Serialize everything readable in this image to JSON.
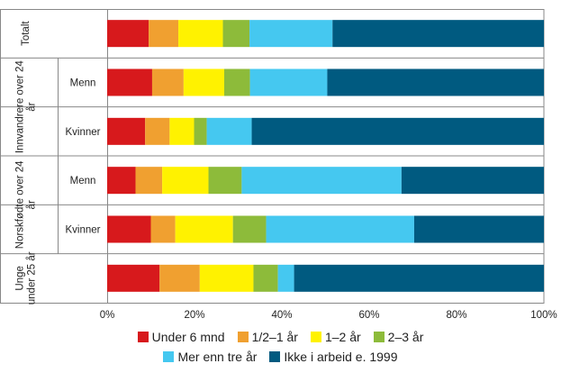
{
  "chart_data": {
    "type": "bar",
    "orientation": "horizontal",
    "stacked": true,
    "groups": [
      {
        "label": "Totalt",
        "rows": [
          ""
        ]
      },
      {
        "label": "Innvandrere over 24 år",
        "rows": [
          "Menn",
          "Kvinner"
        ]
      },
      {
        "label": "Norskfødte over 24 år",
        "rows": [
          "Menn",
          "Kvinner"
        ]
      },
      {
        "label": "Unge under 25 år",
        "rows": [
          ""
        ]
      }
    ],
    "categories": [
      "Totalt",
      "Innvandrere over 24 år Menn",
      "Innvandrere over 24 år Kvinner",
      "Norskfødte over 24 år Menn",
      "Norskfødte over 24 år Kvinner",
      "Unge under 25 år"
    ],
    "series": [
      {
        "name": "Under 6 mnd",
        "color": "#d7191c",
        "values": [
          9.5,
          10.3,
          8.7,
          6.5,
          10.0,
          12.0
        ]
      },
      {
        "name": "1/2–1 år",
        "color": "#f0a030",
        "values": [
          6.8,
          7.2,
          5.6,
          6.1,
          5.6,
          9.2
        ]
      },
      {
        "name": "1–2 år",
        "color": "#fff200",
        "values": [
          10.2,
          9.3,
          5.6,
          10.6,
          13.2,
          12.3
        ]
      },
      {
        "name": "2–3 år",
        "color": "#8dbb3a",
        "values": [
          6.1,
          5.9,
          2.9,
          7.6,
          7.6,
          5.6
        ]
      },
      {
        "name": "Mer enn tre år",
        "color": "#45c8f0",
        "values": [
          19.0,
          17.7,
          10.3,
          36.6,
          33.9,
          3.7
        ]
      },
      {
        "name": "Ikke i arbeid e. 1999",
        "color": "#005a80",
        "values": [
          48.4,
          49.6,
          66.9,
          32.6,
          29.7,
          57.2
        ]
      }
    ],
    "x_ticks": [
      "0%",
      "20%",
      "40%",
      "60%",
      "80%",
      "100%"
    ],
    "xlim": [
      0,
      100
    ],
    "legend_position": "bottom",
    "grid": false
  },
  "legend_rows": [
    [
      0,
      1,
      2,
      3
    ],
    [
      4,
      5
    ]
  ]
}
